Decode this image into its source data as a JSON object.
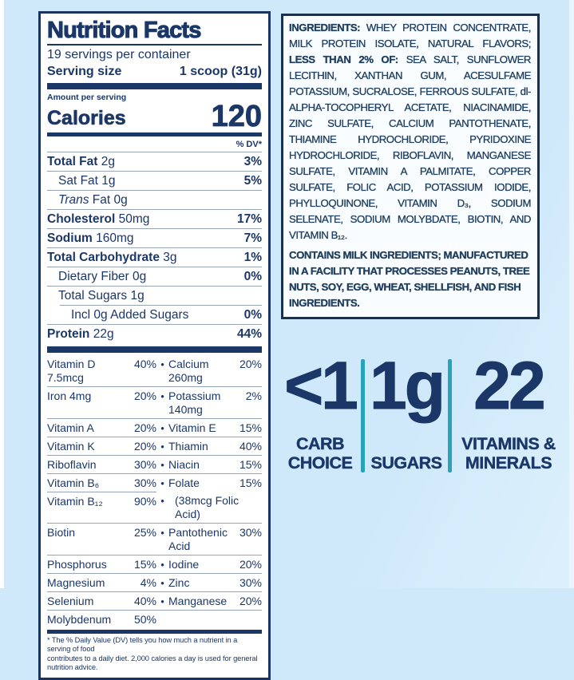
{
  "colors": {
    "navy": "#1b3768",
    "ingredients_ink": "#21405f",
    "teal_divider": "#28a3ba",
    "page_background": "#cfe9fa",
    "hairline": "#97a5b8",
    "panel_border": "#1a3460"
  },
  "bullet_char": "•",
  "nutrition_panel": {
    "title": "Nutrition Facts",
    "servings_per_container": "19 servings per container",
    "serving_size_label": "Serving size",
    "serving_size_value": "1 scoop (31g)",
    "amount_per_serving": "Amount per serving",
    "calories_label": "Calories",
    "calories_value": "120",
    "dv_header": "% DV*",
    "rows": [
      {
        "parts": [
          {
            "t": "Total Fat ",
            "b": true
          },
          {
            "t": "2g"
          }
        ],
        "dv": "3%",
        "indent": 0
      },
      {
        "parts": [
          {
            "t": "Sat Fat 1g"
          }
        ],
        "dv": "5%",
        "indent": 1
      },
      {
        "parts": [
          {
            "t": "Trans ",
            "i": true
          },
          {
            "t": "Fat 0g"
          }
        ],
        "dv": "",
        "indent": 1
      },
      {
        "parts": [
          {
            "t": "Cholesterol ",
            "b": true
          },
          {
            "t": "50mg"
          }
        ],
        "dv": "17%",
        "indent": 0
      },
      {
        "parts": [
          {
            "t": "Sodium ",
            "b": true
          },
          {
            "t": "160mg"
          }
        ],
        "dv": "7%",
        "indent": 0
      },
      {
        "parts": [
          {
            "t": "Total Carbohydrate ",
            "b": true
          },
          {
            "t": "3g"
          }
        ],
        "dv": "1%",
        "indent": 0
      },
      {
        "parts": [
          {
            "t": "Dietary Fiber 0g"
          }
        ],
        "dv": "0%",
        "indent": 1
      },
      {
        "parts": [
          {
            "t": "Total Sugars 1g"
          }
        ],
        "dv": "",
        "indent": 1
      },
      {
        "parts": [
          {
            "t": "Incl 0g Added Sugars"
          }
        ],
        "dv": "0%",
        "indent": 2,
        "indent_border": true
      },
      {
        "parts": [
          {
            "t": "Protein ",
            "b": true
          },
          {
            "t": "22g"
          }
        ],
        "dv": "44%",
        "indent": 0
      }
    ],
    "vitamins": [
      {
        "left": "Vitamin D 7.5mcg",
        "ldv": "40%",
        "bullet": true,
        "right": "Calcium 260mg",
        "rdv": "20%"
      },
      {
        "left": "Iron 4mg",
        "ldv": "20%",
        "bullet": true,
        "right": "Potassium 140mg",
        "rdv": "2%"
      },
      {
        "left": "Vitamin A",
        "ldv": "20%",
        "bullet": true,
        "right": "Vitamin E",
        "rdv": "15%"
      },
      {
        "left": "Vitamin K",
        "ldv": "20%",
        "bullet": true,
        "right": "Thiamin",
        "rdv": "40%"
      },
      {
        "left": "Riboflavin",
        "ldv": "30%",
        "bullet": true,
        "right": "Niacin",
        "rdv": "15%"
      },
      {
        "left": "Vitamin B₆",
        "ldv": "30%",
        "bullet": true,
        "right": "Folate",
        "rdv": "15%"
      },
      {
        "left": "Vitamin B₁₂",
        "ldv": "90%",
        "bullet": true,
        "right": "(38mcg Folic Acid)",
        "rdv": "",
        "right_border": false,
        "right_indent": true
      },
      {
        "left": "Biotin",
        "ldv": "25%",
        "bullet": true,
        "right": "Pantothenic Acid",
        "rdv": "30%"
      },
      {
        "left": "Phosphorus",
        "ldv": "15%",
        "bullet": true,
        "right": "Iodine",
        "rdv": "20%"
      },
      {
        "left": "Magnesium",
        "ldv": "4%",
        "bullet": true,
        "right": "Zinc",
        "rdv": "30%"
      },
      {
        "left": "Selenium",
        "ldv": "40%",
        "bullet": true,
        "right": "Manganese",
        "rdv": "20%"
      },
      {
        "left": "Molybdenum",
        "ldv": "50%",
        "bullet": false,
        "right": "",
        "rdv": ""
      }
    ],
    "footnote_lines": [
      "* The % Daily Value (DV) tells you how much a nutrient in a serving of food",
      "contributes to a daily diet. 2,000 calories a day is used for general nutrition advice."
    ]
  },
  "ingredients_box": {
    "paragraphs": [
      {
        "allbold": false,
        "segments": [
          {
            "text": "INGREDIENTS: ",
            "bold": true
          },
          {
            "text": "WHEY PROTEIN CONCENTRATE, MILK PROTEIN ISOLATE, NATURAL FLAVORS; ",
            "bold": false
          },
          {
            "text": "LESS THAN 2% OF: ",
            "bold": true
          },
          {
            "text": "SEA SALT, SUNFLOWER LECITHIN, XANTHAN GUM, ACESULFAME POTASSIUM, SUCRALOSE, FERROUS SULFATE, dl-ALPHA-TOCOPHERYL ACETATE, NIACINAMIDE, ZINC SULFATE, CALCIUM PANTOTHENATE, THIAMINE HYDROCHLORIDE, PYRIDOXINE HYDROCHLORIDE, RIBOFLAVIN, MANGANESE SULFATE, VITAMIN A PALMITATE, COPPER SULFATE, FOLIC ACID, POTASSIUM IODIDE, PHYLLOQUINONE, VITAMIN D₃, SODIUM SELENATE, SODIUM MOLYBDATE, BIOTIN, AND VITAMIN B₁₂.",
            "bold": false
          }
        ]
      },
      {
        "allbold": true,
        "segments": [
          {
            "text": "CONTAINS MILK INGREDIENTS; MANUFACTURED IN A FACILITY THAT PROCESSES PEANUTS, TREE NUTS, SOY, EGG, WHEAT, SHELLFISH, AND FISH INGREDIENTS.",
            "bold": true
          }
        ]
      }
    ]
  },
  "stats": {
    "items": [
      {
        "value": "<1",
        "label_lines": [
          "CARB",
          "CHOICE"
        ]
      },
      {
        "value": "1g",
        "label_lines": [
          "SUGARS"
        ]
      },
      {
        "value": "22",
        "label_lines": [
          "VITAMINS &",
          "MINERALS"
        ]
      }
    ]
  }
}
